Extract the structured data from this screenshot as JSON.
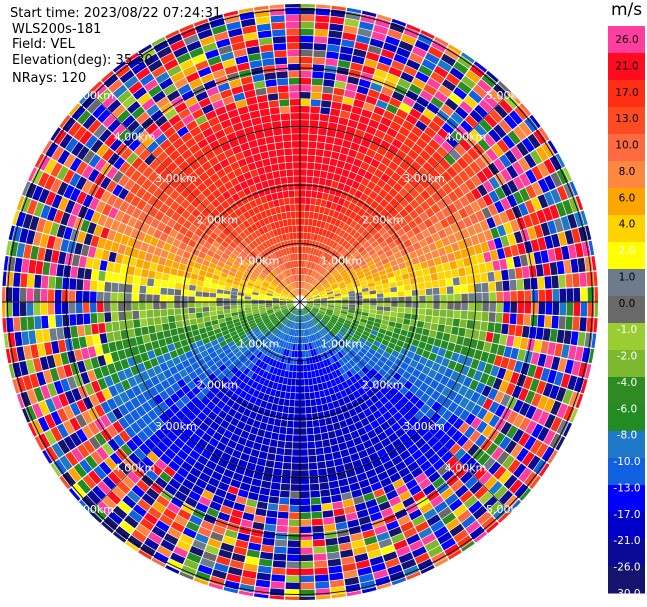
{
  "header": {
    "start_time": "Start time: 2023/08/22 07:24:31",
    "instrument": "WLS200s-181",
    "field": "Field: VEL",
    "elevation": "Elevation(deg): 35.30",
    "nrays": "NRays: 120"
  },
  "chart_data": {
    "type": "ppi",
    "field": "VEL",
    "units": "m/s",
    "elevation_deg": 35.3,
    "n_rays": 120,
    "range_rings_km": [
      "1.00km",
      "2.00km",
      "3.00km",
      "4.00km",
      "5.00km"
    ],
    "colorbar": {
      "unit_label": "m/s",
      "ticks": [
        "26.0",
        "21.0",
        "17.0",
        "13.0",
        "10.0",
        "8.0",
        "6.0",
        "4.0",
        "2.0",
        "1.0",
        "0.0",
        "-1.0",
        "-2.0",
        "-4.0",
        "-6.0",
        "-8.0",
        "-10.0",
        "-13.0",
        "-17.0",
        "-21.0",
        "-26.0",
        "-30.0"
      ],
      "colors": [
        "#ff3ea0",
        "#ff0b20",
        "#ff2e14",
        "#ff4b22",
        "#ff6a40",
        "#ff8840",
        "#ffa500",
        "#ffd200",
        "#ffff00",
        "#6e7b8b",
        "#696969",
        "#9acd32",
        "#7bb82e",
        "#2e8b22",
        "#228b22",
        "#1e78c8",
        "#1060e0",
        "#0000ff",
        "#0000c8",
        "#0a0a96",
        "#14146e"
      ]
    },
    "profile": {
      "description": "positive velocities in upper half, negative in lower half",
      "core_radius_km": 2.0,
      "noise_beyond_km": 3.0
    }
  }
}
